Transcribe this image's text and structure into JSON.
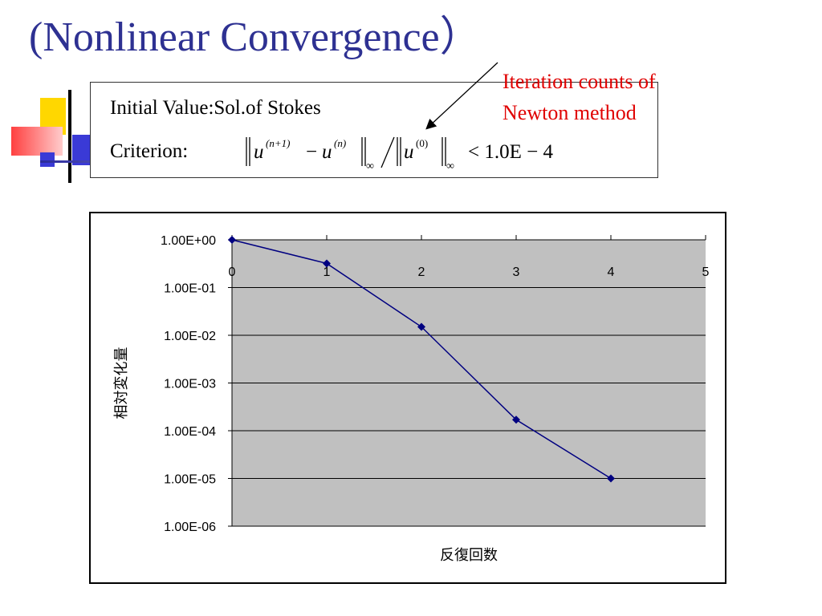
{
  "slide": {
    "title": "(Nonlinear Convergence）",
    "initial_value_label": "Initial Value",
    "initial_value_sep": ":",
    "initial_value_text": "Sol.of Stokes",
    "criterion_label": "Criterion",
    "criterion_sep": ":",
    "formula": {
      "u": "u",
      "sup_next": "(n+1)",
      "sup_n": "(n)",
      "sup_zero": "(0)",
      "minus": "−",
      "inf": "∞",
      "rhs": "< 1.0E − 4"
    },
    "annotation": {
      "line1": "Iteration counts of",
      "line2": "Newton method",
      "color": "#e00000"
    }
  },
  "colors": {
    "title": "#2e3192",
    "deco_yellow": "#ffd700",
    "deco_red": "#ff5a5a",
    "deco_blue": "#3a3ad6",
    "plot_bg": "#c0c0c0",
    "series": "#000080"
  },
  "chart_data": {
    "type": "line",
    "title": "",
    "xlabel": "反復回数",
    "ylabel": "相対変化量",
    "x_ticks": [
      "0",
      "1",
      "2",
      "3",
      "4",
      "5"
    ],
    "y_ticks": [
      "1.00E+00",
      "1.00E-01",
      "1.00E-02",
      "1.00E-03",
      "1.00E-04",
      "1.00E-05",
      "1.00E-06"
    ],
    "xlim": [
      0,
      5
    ],
    "ylim": [
      1e-06,
      1
    ],
    "y_scale": "log",
    "grid": true,
    "x": [
      0,
      1,
      2,
      3,
      4
    ],
    "series": [
      {
        "values": [
          1.0,
          0.32,
          0.015,
          0.00017,
          1e-05
        ]
      }
    ]
  }
}
